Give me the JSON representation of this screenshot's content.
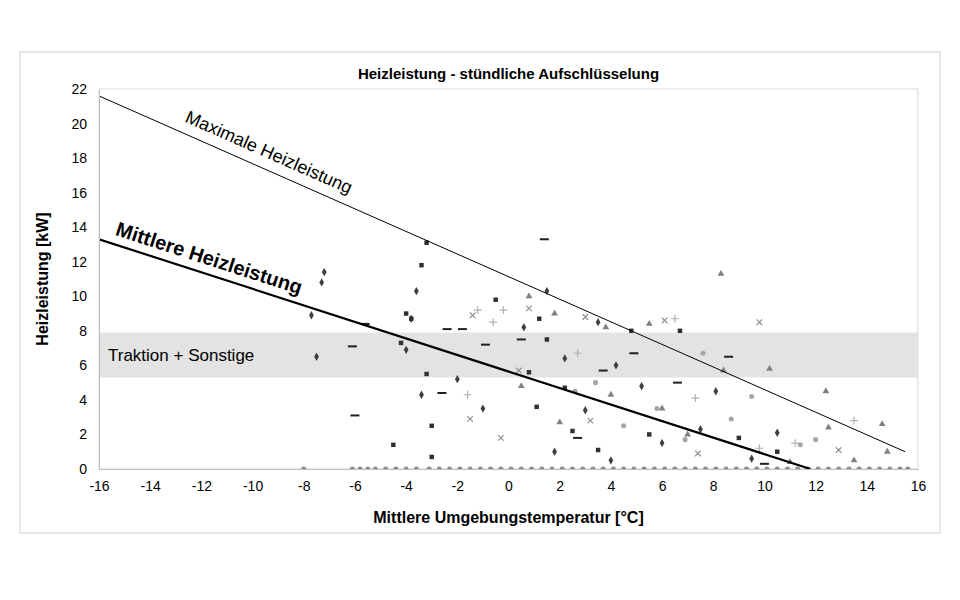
{
  "chart_data": {
    "type": "scatter",
    "title": "Heizleistung - stündliche Aufschlüsselung",
    "x_label": "Mittlere Umgebungstemperatur [°C]",
    "y_label": "Heizleistung [kW]",
    "xlim": [
      -16,
      16
    ],
    "xticks": [
      -16,
      -14,
      -12,
      -10,
      -8,
      -6,
      -4,
      -2,
      0,
      2,
      4,
      6,
      8,
      10,
      12,
      14,
      16
    ],
    "ylim": [
      0,
      22
    ],
    "yticks": [
      0,
      2,
      4,
      6,
      8,
      10,
      12,
      14,
      16,
      18,
      20,
      22
    ],
    "grid": false,
    "bands": [
      {
        "label": "Traktion + Sonstige",
        "values": [
          5.3,
          7.9
        ],
        "color": "#e3e3e3"
      }
    ],
    "series": [
      {
        "name": "Maximale Heizleistung",
        "type": "line",
        "color": "#000000",
        "line_style": "solid",
        "x": [
          -16,
          15.5
        ],
        "values": [
          21.6,
          1.0
        ]
      },
      {
        "name": "Mittlere Heizleistung",
        "type": "line",
        "color": "#000000",
        "line_style": "solid",
        "x": [
          -16,
          11.8
        ],
        "values": [
          13.3,
          0
        ]
      },
      {
        "type": "scatter",
        "marker": "diamond",
        "color": "#404040",
        "x": [
          -7.2,
          -7.3,
          -7.7,
          -7.5,
          -3.8,
          -3.6,
          -4.0,
          -3.4,
          -2.0,
          1.5,
          0.6,
          2.2,
          3.5,
          4.2,
          3.0,
          5.2,
          7.5,
          8.1,
          -1.0,
          1.8,
          4.0,
          6.0,
          9.5,
          10.5
        ],
        "values": [
          11.4,
          10.8,
          8.9,
          6.5,
          8.7,
          10.3,
          6.9,
          4.3,
          5.2,
          10.3,
          8.2,
          6.4,
          8.5,
          6.0,
          3.4,
          4.8,
          2.3,
          4.5,
          3.5,
          1.0,
          0.5,
          1.5,
          0.6,
          2.1
        ]
      },
      {
        "type": "scatter",
        "marker": "square",
        "color": "#303030",
        "x": [
          -3.2,
          -3.4,
          -4.0,
          -3.8,
          -4.2,
          -3.2,
          -3.0,
          -4.5,
          -3.0,
          -0.5,
          1.2,
          1.5,
          0.8,
          1.1,
          2.5,
          3.5,
          2.2,
          4.8,
          6.7,
          5.5,
          9.0,
          10.5
        ],
        "values": [
          13.1,
          11.8,
          9.0,
          8.7,
          7.3,
          5.5,
          2.5,
          1.4,
          0.7,
          9.8,
          8.7,
          7.5,
          5.6,
          3.6,
          2.2,
          1.1,
          4.7,
          8.0,
          8.0,
          2.0,
          1.8,
          1.0
        ]
      },
      {
        "type": "scatter",
        "marker": "triangle",
        "color": "#808080",
        "x": [
          0.8,
          1.8,
          3.8,
          5.5,
          0.5,
          2.0,
          4.0,
          6.0,
          8.3,
          8.4,
          10.2,
          12.4,
          12.5,
          14.6,
          14.8,
          7.0,
          11.0,
          13.5
        ],
        "values": [
          10.0,
          9.0,
          8.2,
          8.4,
          4.8,
          2.7,
          4.3,
          3.5,
          11.3,
          5.7,
          5.8,
          4.5,
          2.4,
          2.6,
          1.0,
          2.0,
          0.4,
          0.5
        ]
      },
      {
        "type": "scatter",
        "marker": "circle",
        "color": "#a6a6a6",
        "x": [
          2.6,
          5.8,
          7.6,
          8.7,
          9.5,
          11.4,
          12.0,
          6.9,
          4.5,
          3.4
        ],
        "values": [
          4.5,
          3.5,
          6.7,
          2.9,
          4.2,
          1.4,
          1.7,
          1.7,
          2.5,
          5.0
        ]
      },
      {
        "type": "scatter",
        "marker": "cross",
        "color": "#909090",
        "x": [
          -1.5,
          0.8,
          3.0,
          6.1,
          9.8,
          -0.3,
          7.4,
          12.9,
          3.2,
          0.4,
          -1.4
        ],
        "values": [
          2.9,
          9.3,
          8.8,
          8.6,
          8.5,
          1.8,
          0.9,
          1.1,
          2.8,
          5.7,
          8.9
        ]
      },
      {
        "type": "scatter",
        "marker": "plus",
        "color": "#b0b0b0",
        "x": [
          -1.6,
          -1.2,
          -0.2,
          2.7,
          6.5,
          7.3,
          9.8,
          13.5,
          11.2,
          -0.6
        ],
        "values": [
          4.3,
          9.2,
          9.2,
          6.7,
          8.7,
          4.1,
          1.2,
          2.8,
          1.5,
          8.5
        ]
      },
      {
        "type": "scatter",
        "marker": "dash",
        "color": "#202020",
        "x": [
          -5.6,
          -6.1,
          -6.0,
          -2.4,
          -1.8,
          -0.9,
          0.5,
          1.4,
          4.9,
          3.7,
          6.6,
          8.6,
          2.7,
          10.0,
          -2.6
        ],
        "values": [
          8.4,
          7.1,
          3.1,
          8.1,
          8.1,
          7.2,
          7.5,
          13.3,
          6.7,
          5.7,
          5.0,
          6.5,
          1.8,
          0.3,
          4.4
        ]
      },
      {
        "type": "scatter",
        "marker": "circle",
        "color": "#8c8c8c",
        "x": [
          -8.0,
          -6.1,
          -5.8,
          -5.5,
          -5.2,
          -4.8,
          -4.4,
          -4.0,
          -3.6,
          -3.1,
          -2.7,
          -2.3,
          -1.9,
          -1.5,
          -1.1,
          -0.7,
          -0.3,
          0.1,
          0.5,
          0.9,
          1.3,
          1.7,
          2.1,
          2.5,
          2.9,
          3.3,
          3.7,
          4.1,
          4.5,
          4.9,
          5.3,
          5.7,
          6.1,
          6.5,
          6.9,
          7.3,
          7.7,
          8.1,
          8.5,
          8.9,
          9.3,
          9.7,
          10.1,
          10.5,
          10.9,
          11.3,
          11.7,
          12.1,
          12.5,
          12.9,
          13.3,
          13.7,
          14.1,
          14.5,
          14.9,
          15.3,
          15.6
        ],
        "values": [
          0,
          0,
          0,
          0,
          0,
          0,
          0,
          0,
          0,
          0,
          0,
          0,
          0,
          0,
          0,
          0,
          0,
          0,
          0,
          0,
          0,
          0,
          0,
          0,
          0,
          0,
          0,
          0,
          0,
          0,
          0,
          0,
          0,
          0,
          0,
          0,
          0,
          0,
          0,
          0,
          0,
          0,
          0,
          0,
          0,
          0,
          0,
          0,
          0,
          0,
          0,
          0,
          0,
          0,
          0,
          0,
          0
        ]
      }
    ]
  }
}
